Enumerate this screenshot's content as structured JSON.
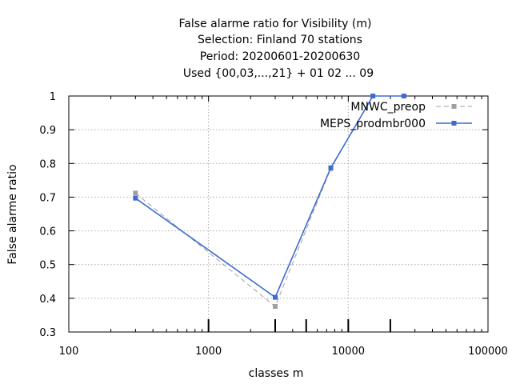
{
  "chart_data": {
    "type": "line",
    "title_lines": [
      "False alarme ratio  for Visibility (m)",
      "Selection: Finland     70 stations",
      "Period: 20200601-20200630",
      "Used {00,03,...,21} + 01 02 ... 09"
    ],
    "xlabel": "classes m",
    "ylabel": "False alarme ratio",
    "x_scale": "log",
    "xlim": [
      100,
      100000
    ],
    "ylim": [
      0.3,
      1.0
    ],
    "x_ticks": [
      100,
      1000,
      10000,
      100000
    ],
    "x_tick_labels": [
      "100",
      "1000",
      "10000",
      "100000"
    ],
    "y_ticks": [
      0.3,
      0.4,
      0.5,
      0.6,
      0.7,
      0.8,
      0.9,
      1.0
    ],
    "y_tick_labels": [
      "0.3",
      "0.4",
      "0.5",
      "0.6",
      "0.7",
      "0.8",
      "0.9",
      "1"
    ],
    "class_markers": [
      1000,
      3000,
      5000,
      10000,
      20000
    ],
    "grid": true,
    "legend_position": "top-right",
    "series": [
      {
        "name": "MNWC_preop",
        "color": "#a0a0a0",
        "dash": "dashed",
        "x": [
          300,
          3000,
          7500,
          15000,
          25000
        ],
        "y": [
          0.712,
          0.376,
          0.785,
          1.0,
          1.0
        ]
      },
      {
        "name": "MEPS_prodmbr000",
        "color": "#3e6bd0",
        "dash": "solid",
        "x": [
          300,
          3000,
          7500,
          15000,
          25000
        ],
        "y": [
          0.697,
          0.403,
          0.787,
          1.0,
          1.0
        ]
      }
    ]
  }
}
